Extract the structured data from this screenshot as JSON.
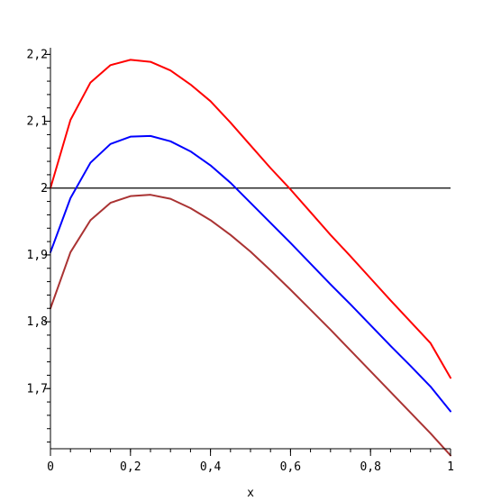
{
  "chart_data": {
    "type": "line",
    "title": "",
    "xlabel": "x",
    "ylabel": "",
    "xlim": [
      0,
      1
    ],
    "ylim": [
      1.61,
      2.21
    ],
    "x_ticks": [
      {
        "value": 0,
        "label": "0"
      },
      {
        "value": 0.2,
        "label": "0,2"
      },
      {
        "value": 0.4,
        "label": "0,4"
      },
      {
        "value": 0.6,
        "label": "0,6"
      },
      {
        "value": 0.8,
        "label": "0,8"
      },
      {
        "value": 1,
        "label": "1"
      }
    ],
    "y_ticks": [
      {
        "value": 1.7,
        "label": "1,7"
      },
      {
        "value": 1.8,
        "label": "1,8"
      },
      {
        "value": 1.9,
        "label": "1,9"
      },
      {
        "value": 2.0,
        "label": "2"
      },
      {
        "value": 2.1,
        "label": "2,1"
      },
      {
        "value": 2.2,
        "label": "2,2"
      }
    ],
    "x_minor_step": 0.05,
    "y_minor_step": 0.02,
    "grid": false,
    "legend": "none",
    "hline": {
      "y": 2.0,
      "color": "#000000"
    },
    "series": [
      {
        "color": "#ff0000",
        "x": [
          0,
          0.05,
          0.1,
          0.15,
          0.2,
          0.25,
          0.3,
          0.35,
          0.4,
          0.45,
          0.5,
          0.55,
          0.6,
          0.65,
          0.7,
          0.75,
          0.8,
          0.85,
          0.9,
          0.95,
          1.0
        ],
        "y": [
          2.0,
          2.102,
          2.158,
          2.184,
          2.192,
          2.189,
          2.176,
          2.155,
          2.13,
          2.098,
          2.064,
          2.03,
          1.998,
          1.964,
          1.93,
          1.898,
          1.865,
          1.832,
          1.8,
          1.768,
          1.716
        ]
      },
      {
        "color": "#0000ff",
        "x": [
          0,
          0.05,
          0.1,
          0.15,
          0.2,
          0.25,
          0.3,
          0.35,
          0.4,
          0.45,
          0.5,
          0.55,
          0.6,
          0.65,
          0.7,
          0.75,
          0.8,
          0.85,
          0.9,
          0.95,
          1.0
        ],
        "y": [
          1.904,
          1.985,
          2.038,
          2.066,
          2.077,
          2.078,
          2.07,
          2.055,
          2.034,
          2.008,
          1.978,
          1.948,
          1.918,
          1.887,
          1.856,
          1.826,
          1.795,
          1.764,
          1.734,
          1.703,
          1.666
        ]
      },
      {
        "color": "#aa3333",
        "x": [
          0,
          0.05,
          0.1,
          0.15,
          0.2,
          0.25,
          0.3,
          0.35,
          0.4,
          0.45,
          0.5,
          0.55,
          0.6,
          0.65,
          0.7,
          0.75,
          0.8,
          0.85,
          0.9,
          0.95,
          1.0
        ],
        "y": [
          1.82,
          1.904,
          1.952,
          1.978,
          1.988,
          1.99,
          1.984,
          1.97,
          1.952,
          1.93,
          1.905,
          1.877,
          1.848,
          1.818,
          1.788,
          1.757,
          1.726,
          1.695,
          1.664,
          1.633,
          1.6
        ]
      }
    ]
  }
}
